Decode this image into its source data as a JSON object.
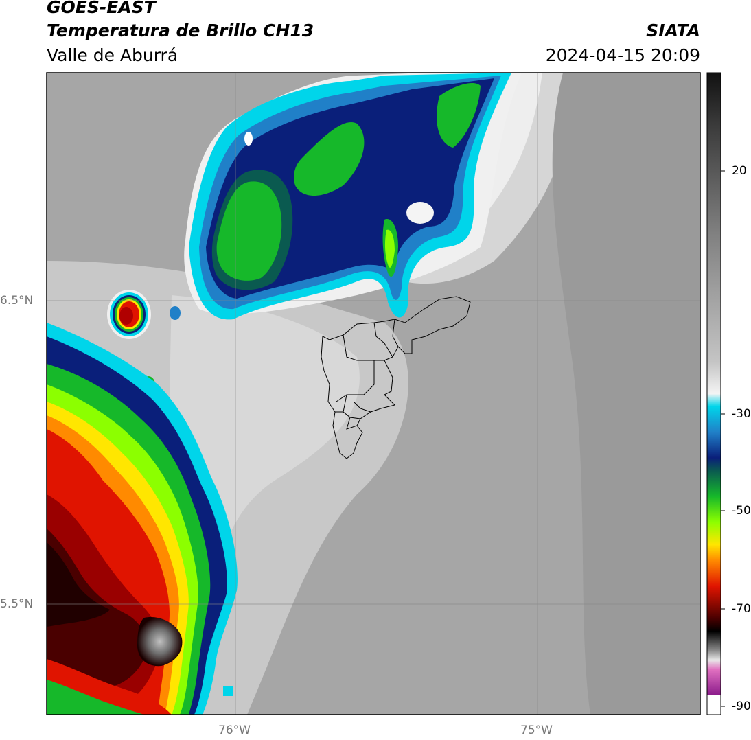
{
  "header": {
    "satellite": "GOES-EAST",
    "product": "Temperatura de Brillo CH13",
    "region": "Valle de Aburrá",
    "agency": "SIATA",
    "datetime": "2024-04-15 20:09"
  },
  "map": {
    "lat_labels": [
      "6.5°N",
      "5.5°N"
    ],
    "lon_labels": [
      "76°W",
      "75°W"
    ]
  },
  "colorbar": {
    "unit_note": "",
    "tick_labels": [
      "20",
      "-30",
      "-50",
      "-70",
      "-90"
    ],
    "colors": {
      "warm_top": "#1a1a1a",
      "mid_grey": "#9a9a9a",
      "light": "#f2f2f2",
      "cyan": "#00d5ea",
      "blue": "#1060b0",
      "navy": "#0a1f7a",
      "green": "#16b82a",
      "lime": "#8cff00",
      "yellow": "#ffe600",
      "orange": "#ff8a00",
      "red": "#e01400",
      "darkred": "#4a0000",
      "black": "#000000",
      "greys": "#8a8a8a",
      "pink": "#e070c0",
      "purple": "#8a1a8a",
      "white": "#ffffff"
    }
  }
}
